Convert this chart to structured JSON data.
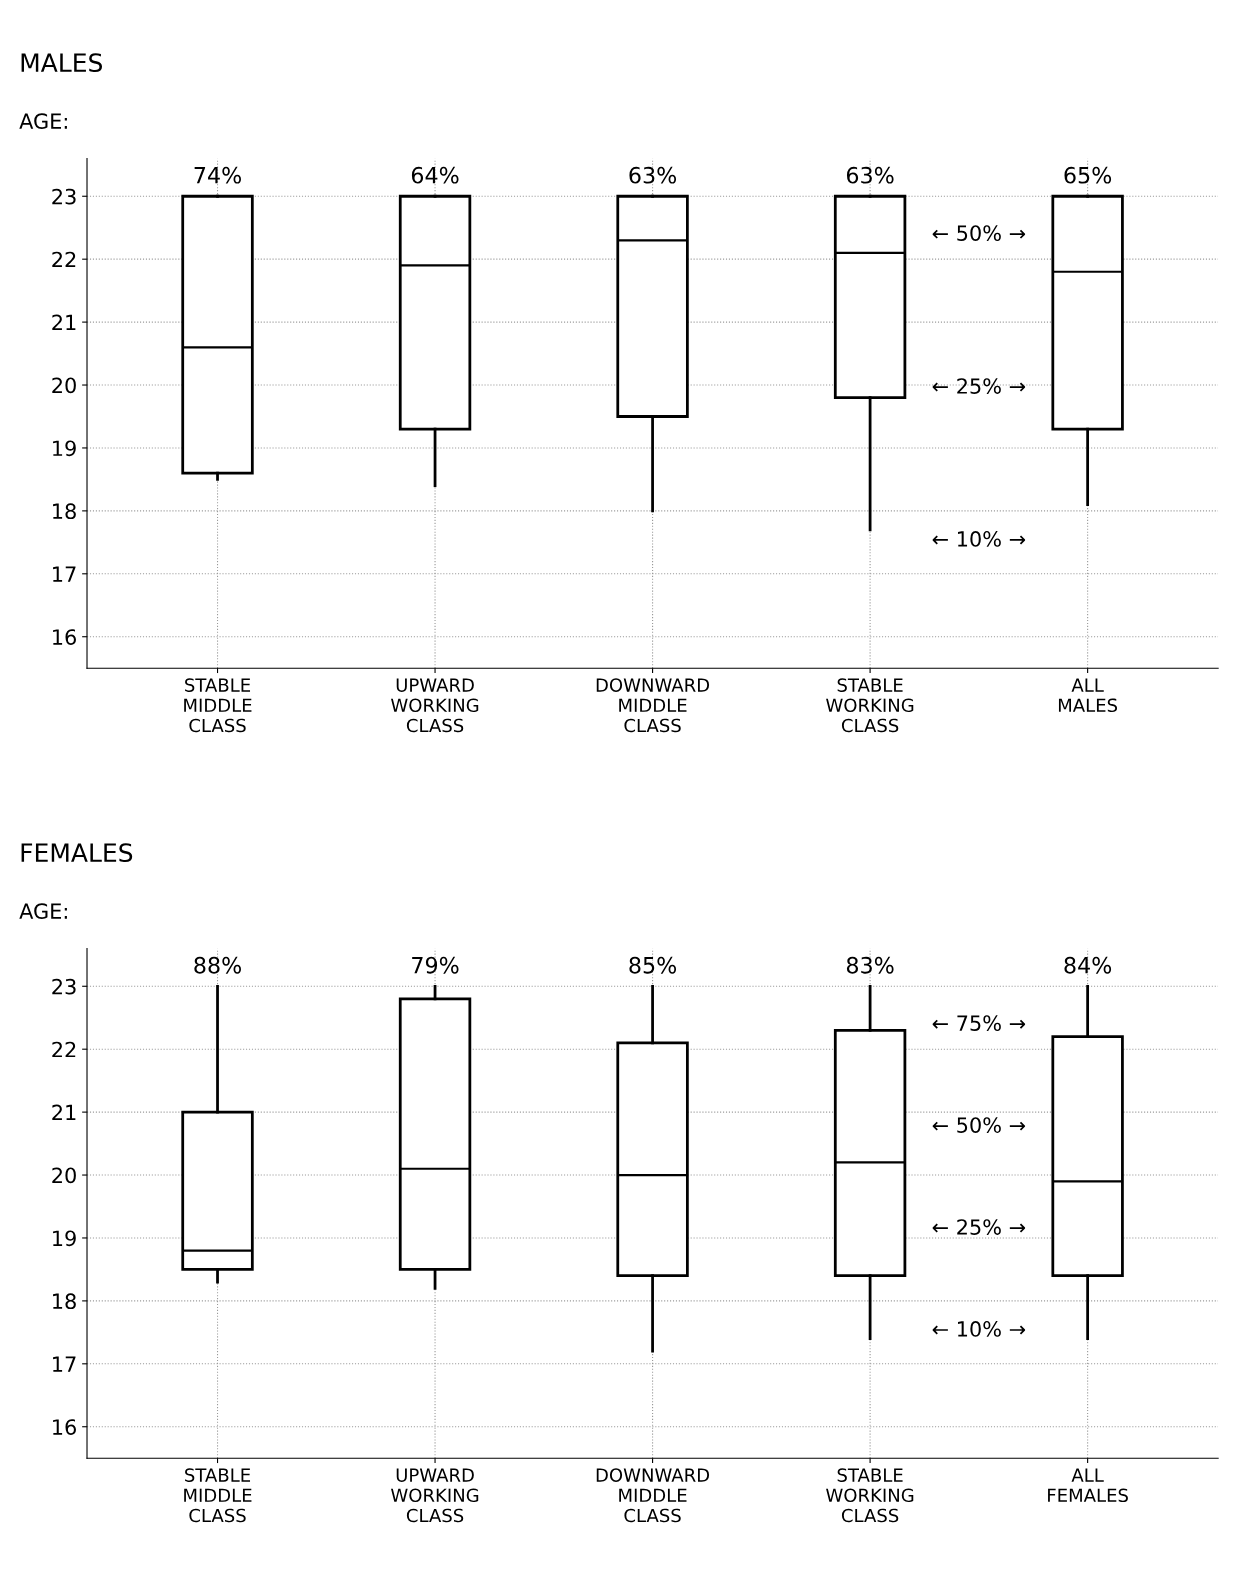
{
  "chart_data": [
    {
      "type": "box",
      "title": "MALES",
      "ylabel": "AGE:",
      "categories": [
        "STABLE\nMIDDLE\nCLASS",
        "UPWARD\nWORKING\nCLASS",
        "DOWNWARD\nMIDDLE\nCLASS",
        "STABLE\nWORKING\nCLASS",
        "ALL\nMALES"
      ],
      "boxes": [
        {
          "low": 18.5,
          "q1": 18.6,
          "median": 20.6,
          "q3": 23,
          "high": 23
        },
        {
          "low": 18.4,
          "q1": 19.3,
          "median": 21.9,
          "q3": 23,
          "high": 23
        },
        {
          "low": 18.0,
          "q1": 19.5,
          "median": 22.3,
          "q3": 23,
          "high": 23
        },
        {
          "low": 17.7,
          "q1": 19.8,
          "median": 22.1,
          "q3": 23,
          "high": 23
        },
        {
          "low": 18.1,
          "q1": 19.3,
          "median": 21.8,
          "q3": 23,
          "high": 23
        }
      ],
      "color": "#000000",
      "ylim": [
        15.5,
        23.6
      ],
      "yticks": [
        16,
        17,
        18,
        19,
        20,
        21,
        22,
        23
      ],
      "grid": true,
      "annotations": [
        {
          "text": "74%",
          "x": "STABLE\nMIDDLE\nCLASS",
          "y": 23
        },
        {
          "text": "64%",
          "x": "UPWARD\nWORKING\nCLASS",
          "y": 23
        },
        {
          "text": "63%",
          "x": "DOWNWARD\nMIDDLE\nCLASS",
          "y": 23
        },
        {
          "text": "63%",
          "x": "STABLE\nWORKING\nCLASS",
          "y": 23
        },
        {
          "text": "65%",
          "x": "ALL\nMALES",
          "y": 23
        },
        "← 50% →",
        "← 25% →",
        "← 10% →"
      ]
    },
    {
      "type": "box",
      "title": "FEMALES",
      "ylabel": "AGE:",
      "categories": [
        "STABLE\nMIDDLE\nCLASS",
        "UPWARD\nWORKING\nCLASS",
        "DOWNWARD\nMIDDLE\nCLASS",
        "STABLE\nWORKING\nCLASS",
        "ALL\nFEMALES"
      ],
      "boxes": [
        {
          "low": 18.3,
          "q1": 18.5,
          "median": 18.8,
          "q3": 21.0,
          "high": 23.0
        },
        {
          "low": 18.2,
          "q1": 18.5,
          "median": 20.1,
          "q3": 22.8,
          "high": 23.0
        },
        {
          "low": 17.2,
          "q1": 18.4,
          "median": 20.0,
          "q3": 22.1,
          "high": 23.0
        },
        {
          "low": 17.4,
          "q1": 18.4,
          "median": 20.2,
          "q3": 22.3,
          "high": 23.0
        },
        {
          "low": 17.4,
          "q1": 18.4,
          "median": 19.9,
          "q3": 22.2,
          "high": 23.0
        }
      ],
      "color": "#000000",
      "ylim": [
        15.5,
        23.6
      ],
      "yticks": [
        16,
        17,
        18,
        19,
        20,
        21,
        22,
        23
      ],
      "grid": true,
      "annotations": [
        {
          "text": "88%",
          "x": "STABLE\nMIDDLE\nCLASS",
          "y": 23
        },
        {
          "text": "79%",
          "x": "UPWARD\nWORKING\nCLASS",
          "y": 23
        },
        {
          "text": "85%",
          "x": "DOWNWARD\nMIDDLE\nCLASS",
          "y": 23
        },
        {
          "text": "83%",
          "x": "STABLE\nWORKING\nCLASS",
          "y": 23
        },
        {
          "text": "84%",
          "x": "ALL\nFEMALES",
          "y": 23
        },
        "← 75% →",
        "← 50% →",
        "← 25% →",
        "← 10% →"
      ]
    }
  ]
}
